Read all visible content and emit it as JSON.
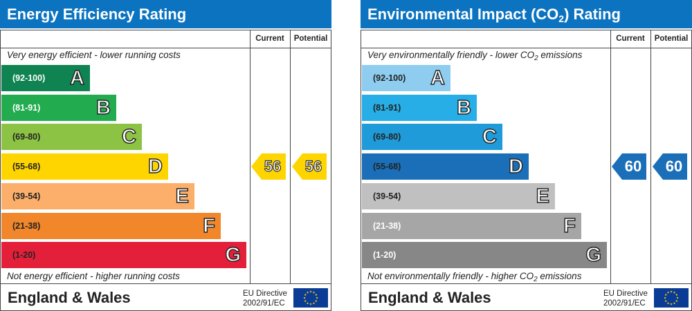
{
  "colors": {
    "header_bg": "#0b73c0",
    "border": "#444444",
    "flag_bg": "#0a3c96",
    "flag_stars": "#ffd200"
  },
  "panels": [
    {
      "id": "energy-efficiency",
      "title": "Energy Efficiency Rating",
      "column_current": "Current",
      "column_potential": "Potential",
      "top_note": "Very energy efficient - lower running costs",
      "bottom_note": "Not energy efficient - higher running costs",
      "country": "England & Wales",
      "directive_line1": "EU Directive",
      "directive_line2": "2002/91/EC",
      "flag_icon": "eu-flag-icon",
      "bands": [
        {
          "range": "(92-100)",
          "letter": "A",
          "color": "#0f8351",
          "text_color": "#ffffff"
        },
        {
          "range": "(81-91)",
          "letter": "B",
          "color": "#23ab50",
          "text_color": "#ffffff"
        },
        {
          "range": "(69-80)",
          "letter": "C",
          "color": "#8cc344",
          "text_color": "#222222"
        },
        {
          "range": "(55-68)",
          "letter": "D",
          "color": "#ffd500",
          "text_color": "#222222"
        },
        {
          "range": "(39-54)",
          "letter": "E",
          "color": "#fcaf6b",
          "text_color": "#222222"
        },
        {
          "range": "(21-38)",
          "letter": "F",
          "color": "#f1862a",
          "text_color": "#222222"
        },
        {
          "range": "(1-20)",
          "letter": "G",
          "color": "#e41f3a",
          "text_color": "#222222"
        }
      ],
      "current": {
        "value": "56",
        "band": "D",
        "color": "#ffd500"
      },
      "potential": {
        "value": "56",
        "band": "D",
        "color": "#ffd500"
      }
    },
    {
      "id": "environmental-impact",
      "title_prefix": "Environmental Impact (CO",
      "title_sub": "2",
      "title_suffix": ") Rating",
      "column_current": "Current",
      "column_potential": "Potential",
      "top_note_prefix": "Very environmentally friendly - lower CO",
      "top_note_sub": "2",
      "top_note_suffix": " emissions",
      "bottom_note_prefix": "Not environmentally friendly - higher CO",
      "bottom_note_sub": "2",
      "bottom_note_suffix": " emissions",
      "country": "England & Wales",
      "directive_line1": "EU Directive",
      "directive_line2": "2002/91/EC",
      "flag_icon": "eu-flag-icon",
      "bands": [
        {
          "range": "(92-100)",
          "letter": "A",
          "color": "#8ecdf0",
          "text_color": "#222222"
        },
        {
          "range": "(81-91)",
          "letter": "B",
          "color": "#27aee6",
          "text_color": "#222222"
        },
        {
          "range": "(69-80)",
          "letter": "C",
          "color": "#1f9bd9",
          "text_color": "#222222"
        },
        {
          "range": "(55-68)",
          "letter": "D",
          "color": "#1a6fb8",
          "text_color": "#222222"
        },
        {
          "range": "(39-54)",
          "letter": "E",
          "color": "#c0c0c0",
          "text_color": "#222222"
        },
        {
          "range": "(21-38)",
          "letter": "F",
          "color": "#a6a6a6",
          "text_color": "#ffffff"
        },
        {
          "range": "(1-20)",
          "letter": "G",
          "color": "#878787",
          "text_color": "#ffffff"
        }
      ],
      "current": {
        "value": "60",
        "band": "D",
        "color": "#1a6fb8"
      },
      "potential": {
        "value": "60",
        "band": "D",
        "color": "#1a6fb8"
      }
    }
  ],
  "chart_data": [
    {
      "type": "bar",
      "title": "Energy Efficiency Rating",
      "categories": [
        "A",
        "B",
        "C",
        "D",
        "E",
        "F",
        "G"
      ],
      "ranges": [
        "(92-100)",
        "(81-91)",
        "(69-80)",
        "(55-68)",
        "(39-54)",
        "(21-38)",
        "(1-20)"
      ],
      "current": 56,
      "potential": 56,
      "legend": [
        "Current",
        "Potential"
      ]
    },
    {
      "type": "bar",
      "title": "Environmental Impact (CO2) Rating",
      "categories": [
        "A",
        "B",
        "C",
        "D",
        "E",
        "F",
        "G"
      ],
      "ranges": [
        "(92-100)",
        "(81-91)",
        "(69-80)",
        "(55-68)",
        "(39-54)",
        "(21-38)",
        "(1-20)"
      ],
      "current": 60,
      "potential": 60,
      "legend": [
        "Current",
        "Potential"
      ]
    }
  ]
}
